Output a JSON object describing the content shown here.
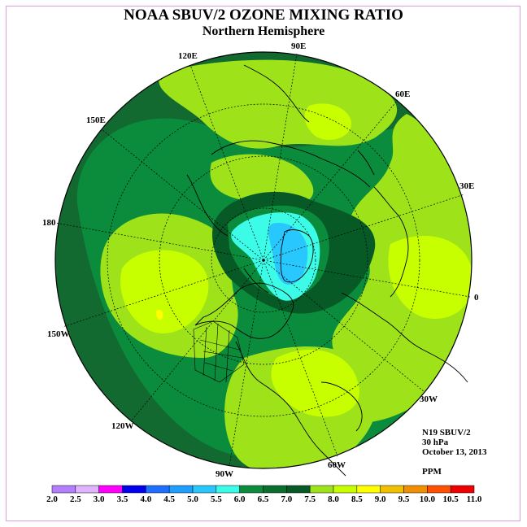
{
  "title": "NOAA SBUV/2 OZONE MIXING RATIO",
  "subtitle": "Northern Hemisphere",
  "longitude_labels": {
    "lon_90e": "90E",
    "lon_120e": "120E",
    "lon_60e": "60E",
    "lon_150e": "150E",
    "lon_30e": "30E",
    "lon_180": "180",
    "lon_0": "0",
    "lon_150w": "150W",
    "lon_30w": "30W",
    "lon_120w": "120W",
    "lon_60w": "60W",
    "lon_90w": "90W"
  },
  "info": {
    "instrument": "N19 SBUV/2",
    "level": "30 hPa",
    "date": "October 13, 2013",
    "units": "PPM"
  },
  "colorbar": {
    "ticks": [
      "2.0",
      "2.5",
      "3.0",
      "3.5",
      "4.0",
      "4.5",
      "5.0",
      "5.5",
      "6.0",
      "6.5",
      "7.0",
      "7.5",
      "8.0",
      "8.5",
      "9.0",
      "9.5",
      "10.0",
      "10.5",
      "11.0"
    ],
    "colors": [
      "#b37fff",
      "#e0b3ff",
      "#ff00ff",
      "#0000ee",
      "#1e6fff",
      "#1e9fff",
      "#28c8ff",
      "#3cfce8",
      "#0a8c3c",
      "#0a6e30",
      "#075a25",
      "#9ee31a",
      "#c8ff00",
      "#ffff00",
      "#f0c000",
      "#f09000",
      "#ff5000",
      "#ee0000",
      "#8b4c30"
    ]
  },
  "map_colors": {
    "dark_green": "#136a30",
    "mid_green": "#0a8c3c",
    "light_green": "#9ee31a",
    "yellow_green": "#c8ff00",
    "yellow": "#ffff00",
    "cyan": "#3cfce8",
    "light_blue": "#28c8ff"
  }
}
